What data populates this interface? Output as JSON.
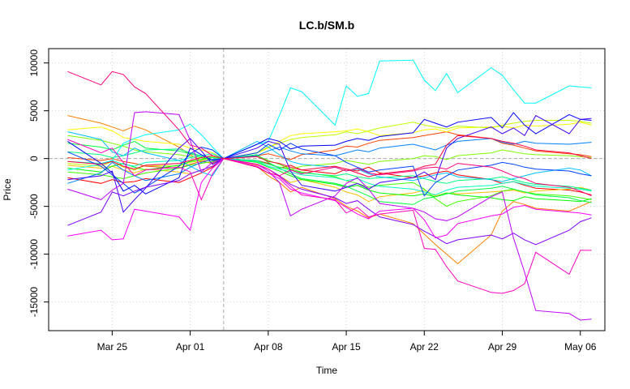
{
  "chart_data": {
    "type": "line",
    "title": "LC.b/SM.b",
    "xlabel": "Time",
    "ylabel": "Price",
    "x_tick_labels": [
      "Mar 25",
      "Apr 01",
      "Apr 08",
      "Apr 15",
      "Apr 22",
      "Apr 29",
      "May 06"
    ],
    "x_tick_positions": [
      4,
      11,
      18,
      25,
      32,
      39,
      46
    ],
    "xlim": [
      -1.7,
      48.2
    ],
    "y_ticks": [
      10000,
      5000,
      0,
      -5000,
      -10000,
      -15000
    ],
    "y_tick_labels": [
      "10000",
      "5000",
      "0",
      "-5000",
      "-10000",
      "-15000"
    ],
    "ylim": [
      -18000,
      11500
    ],
    "grid": true,
    "reference_lines": {
      "x": 14,
      "y": 0
    },
    "x": [
      0,
      3,
      4,
      5,
      6,
      7,
      10,
      11,
      12,
      13,
      14,
      17,
      18,
      19,
      20,
      21,
      24,
      25,
      26,
      27,
      28,
      31,
      32,
      33,
      34,
      35,
      38,
      39,
      40,
      41,
      42,
      45,
      46,
      47
    ],
    "series": [
      {
        "color": "#FF0000",
        "values": [
          -2000,
          -2600,
          -2200,
          -2500,
          -2400,
          -2100,
          -2500,
          -2000,
          -1500,
          -900,
          0,
          -200,
          -500,
          -1000,
          -700,
          -1200,
          -1600,
          -1100,
          -1300,
          -900,
          -1500,
          -2000,
          -1800,
          -1500,
          -1300,
          -1700,
          -2200,
          -2600,
          -2400,
          -2800,
          -3100,
          -3300,
          -3500,
          -3800
        ]
      },
      {
        "color": "#FF4000",
        "values": [
          100,
          -200,
          0,
          -300,
          -500,
          -800,
          -1000,
          -600,
          -300,
          -100,
          0,
          300,
          500,
          200,
          -100,
          400,
          900,
          1300,
          1200,
          1600,
          1900,
          2200,
          2400,
          2600,
          2800,
          2500,
          2100,
          1600,
          1400,
          1100,
          800,
          500,
          400,
          200
        ]
      },
      {
        "color": "#FF8000",
        "values": [
          4500,
          3700,
          3300,
          2900,
          3400,
          3000,
          1200,
          400,
          -300,
          -500,
          0,
          -800,
          -1800,
          -2500,
          -3500,
          -3000,
          -4200,
          -5000,
          -5500,
          -6200,
          -5800,
          -6800,
          -7900,
          -9000,
          -10000,
          -11000,
          -8000,
          -5500,
          -4500,
          -4800,
          -5200,
          -5500,
          -5000,
          -4500
        ]
      },
      {
        "color": "#FFBF00",
        "values": [
          -700,
          -1000,
          -800,
          -1200,
          -1500,
          -1100,
          -1400,
          -1600,
          -1200,
          -800,
          0,
          -700,
          -1100,
          -1800,
          -2500,
          -2200,
          -3000,
          -3500,
          -3800,
          -4500,
          -4000,
          -3600,
          -3300,
          -3900,
          -3600,
          -3700,
          -3500,
          -3400,
          -3300,
          -3600,
          -3400,
          -3200,
          -3000,
          -3300
        ]
      },
      {
        "color": "#FFFF00",
        "values": [
          3000,
          3300,
          2900,
          2200,
          2000,
          1800,
          1500,
          1100,
          900,
          600,
          0,
          600,
          1100,
          1800,
          2400,
          2600,
          2800,
          2900,
          3100,
          2800,
          2400,
          2700,
          3000,
          3100,
          2800,
          3200,
          3300,
          3400,
          3200,
          3500,
          3400,
          3600,
          3800,
          3500
        ]
      },
      {
        "color": "#BFFF00",
        "values": [
          -500,
          -800,
          -300,
          -900,
          -1200,
          -700,
          -800,
          -400,
          -200,
          200,
          0,
          600,
          1200,
          1600,
          2000,
          2200,
          2500,
          2800,
          2600,
          2900,
          3200,
          3800,
          3500,
          3300,
          3100,
          3400,
          3200,
          3500,
          3700,
          3900,
          4000,
          4000,
          3900,
          3700
        ]
      },
      {
        "color": "#80FF00",
        "values": [
          2400,
          1900,
          1600,
          1300,
          900,
          700,
          400,
          200,
          100,
          -200,
          0,
          -300,
          -600,
          -900,
          -1100,
          -800,
          -500,
          -200,
          -400,
          -600,
          -300,
          0,
          300,
          200,
          -100,
          300,
          600,
          900,
          700,
          500,
          400,
          300,
          200,
          100
        ]
      },
      {
        "color": "#40FF00",
        "values": [
          -1400,
          -1700,
          -1900,
          -2100,
          -1800,
          -1500,
          -1000,
          -700,
          -500,
          -300,
          0,
          300,
          -200,
          -600,
          -1100,
          -1400,
          -1900,
          -2300,
          -2600,
          -3000,
          -2800,
          -2500,
          -3200,
          -4200,
          -5000,
          -4500,
          -3900,
          -3400,
          -3200,
          -3500,
          -3700,
          -3900,
          -4100,
          -4300
        ]
      },
      {
        "color": "#00FF00",
        "values": [
          -1000,
          -1400,
          -800,
          -500,
          -900,
          -1200,
          -700,
          -300,
          -100,
          100,
          0,
          -400,
          -900,
          -1300,
          -1800,
          -2200,
          -2700,
          -3000,
          -2800,
          -3300,
          -3600,
          -3900,
          -3700,
          -4000,
          -3600,
          -3800,
          -4100,
          -4300,
          -4400,
          -4000,
          -4200,
          -4400,
          -4500,
          -4200
        ]
      },
      {
        "color": "#00FF40",
        "values": [
          1600,
          1200,
          900,
          1400,
          1800,
          1100,
          800,
          500,
          200,
          -200,
          0,
          400,
          -400,
          -1000,
          -1600,
          -2100,
          -2600,
          -2900,
          -3400,
          -3900,
          -4500,
          -4800,
          -4200,
          -4000,
          -3700,
          -3400,
          -3100,
          -2900,
          -3200,
          -3500,
          -3800,
          -4100,
          -4400,
          -4600
        ]
      },
      {
        "color": "#00FF80",
        "values": [
          700,
          400,
          100,
          300,
          600,
          900,
          1000,
          600,
          300,
          100,
          0,
          -200,
          -600,
          -900,
          -1200,
          -1500,
          -1800,
          -1600,
          -1900,
          -2100,
          -2000,
          -1800,
          -2100,
          -2400,
          -2600,
          -2300,
          -2100,
          -1900,
          -2200,
          -2500,
          -2700,
          -2900,
          -3100,
          -3300
        ]
      },
      {
        "color": "#00FFBF",
        "values": [
          -300,
          -500,
          -200,
          -600,
          -800,
          -400,
          -200,
          100,
          300,
          500,
          0,
          -300,
          -800,
          -1100,
          -1400,
          -1700,
          -2000,
          -2300,
          -2100,
          -2600,
          -2900,
          -3200,
          -3500,
          -3800,
          -3300,
          -3000,
          -2800,
          -2600,
          -2400,
          -2700,
          -2900,
          -3100,
          -3200,
          -3400
        ]
      },
      {
        "color": "#00FFFF",
        "values": [
          -1200,
          -600,
          -200,
          1600,
          2100,
          2500,
          3000,
          3600,
          2500,
          1200,
          0,
          1500,
          1800,
          4500,
          7400,
          7000,
          3500,
          7600,
          6500,
          6800,
          10200,
          10300,
          8200,
          7100,
          8900,
          6900,
          9500,
          8700,
          7200,
          5800,
          5800,
          7600,
          7500,
          7400
        ]
      },
      {
        "color": "#00BFFF",
        "values": [
          2800,
          2000,
          700,
          300,
          1100,
          600,
          -200,
          -800,
          -1400,
          -1800,
          0,
          1800,
          1200,
          400,
          -300,
          -600,
          -900,
          -1300,
          -1100,
          -1600,
          -1900,
          -2300,
          -2000,
          -1700,
          -1500,
          -1900,
          -2200,
          -2400,
          -2100,
          -1800,
          -1500,
          -1000,
          -1200,
          -1800
        ]
      },
      {
        "color": "#0080FF",
        "values": [
          -2600,
          -1500,
          -400,
          -1200,
          -1800,
          -2300,
          -1600,
          -900,
          -400,
          -100,
          0,
          300,
          800,
          1200,
          800,
          500,
          300,
          600,
          900,
          700,
          1100,
          1500,
          1200,
          900,
          1400,
          1800,
          2100,
          1700,
          1500,
          1800,
          1600,
          1500,
          1600,
          1700
        ]
      },
      {
        "color": "#0040FF",
        "values": [
          700,
          -800,
          -1700,
          -2600,
          -3600,
          -3000,
          -800,
          500,
          1200,
          900,
          0,
          600,
          1500,
          900,
          1600,
          1000,
          300,
          -400,
          -900,
          -1400,
          -1200,
          -800,
          -3900,
          -2500,
          -1800,
          -1200,
          -700,
          -400,
          -600,
          -900,
          -1100,
          -1300,
          -1600,
          -1800
        ]
      },
      {
        "color": "#0000FF",
        "values": [
          1800,
          -500,
          -1500,
          -3400,
          -2800,
          -3700,
          -2000,
          1100,
          400,
          -200,
          0,
          1500,
          2100,
          1800,
          1000,
          1300,
          1400,
          1800,
          2100,
          1900,
          2300,
          2700,
          4100,
          3700,
          3300,
          3800,
          4300,
          3200,
          4800,
          3500,
          2600,
          4600,
          4100,
          4000
        ]
      },
      {
        "color": "#4000FF",
        "values": [
          -2200,
          -1800,
          -1300,
          -5600,
          -4300,
          -3100,
          1100,
          2100,
          800,
          -600,
          0,
          1100,
          1800,
          1500,
          -1300,
          -2800,
          -3400,
          -3000,
          -2600,
          -3200,
          -2500,
          -2000,
          -1400,
          -2200,
          1100,
          2100,
          3300,
          2600,
          3200,
          2400,
          4500,
          2600,
          4100,
          4200
        ]
      },
      {
        "color": "#8000FF",
        "values": [
          -7000,
          -5600,
          -3500,
          -3900,
          -3400,
          -3000,
          -2300,
          -1600,
          -1200,
          -800,
          0,
          -600,
          -1100,
          -1800,
          -2700,
          -3200,
          -4100,
          -4700,
          -4400,
          -5300,
          -6100,
          -6900,
          -7600,
          -8200,
          -8900,
          -8500,
          -8000,
          -8400,
          -7800,
          -8500,
          -9000,
          -7500,
          -6600,
          -6200
        ]
      },
      {
        "color": "#BF00FF",
        "values": [
          -3200,
          -4300,
          -3300,
          -2600,
          4800,
          4900,
          4600,
          1900,
          -1400,
          -400,
          0,
          -600,
          -1300,
          -2500,
          -6000,
          -5300,
          -3900,
          -2600,
          -2000,
          -3200,
          -4700,
          -5200,
          -5600,
          -6300,
          -6500,
          -6100,
          -4000,
          -3500,
          -8300,
          -11900,
          -15900,
          -16200,
          -16900,
          -16800
        ]
      },
      {
        "color": "#FF00FF",
        "values": [
          -8100,
          -7500,
          -8500,
          -8400,
          -5300,
          -5500,
          -6100,
          -7500,
          -2500,
          -1000,
          0,
          -800,
          -1500,
          -2100,
          -3200,
          -3600,
          -4400,
          -5100,
          -5800,
          -6300,
          -5500,
          -5200,
          -6400,
          -8300,
          -8000,
          -6800,
          -6000,
          -5800,
          -5100,
          -4900,
          -5300,
          -5600,
          -5700,
          -5900
        ]
      },
      {
        "color": "#FF00BF",
        "values": [
          2000,
          600,
          1100,
          -400,
          -1800,
          -1200,
          -900,
          -1400,
          -4300,
          -1600,
          0,
          -600,
          -1100,
          -1900,
          -2900,
          -3800,
          -4300,
          -5700,
          -5100,
          -6100,
          -5800,
          -5400,
          -9400,
          -9500,
          -11300,
          -12800,
          -14000,
          -14100,
          -13800,
          -13100,
          -9800,
          -12100,
          -9600,
          -9600
        ]
      },
      {
        "color": "#FF0080",
        "values": [
          9100,
          7700,
          9100,
          8800,
          7500,
          6800,
          3000,
          1400,
          1100,
          300,
          0,
          -900,
          -1500,
          -1800,
          -1200,
          -1600,
          -900,
          -1300,
          -1000,
          -1500,
          -1700,
          -1300,
          -1000,
          -900,
          -1100,
          -500,
          -900,
          -1300,
          -1800,
          -2100,
          -2600,
          -3000,
          -3400,
          -3900
        ]
      },
      {
        "color": "#FF0040",
        "values": [
          -300,
          -600,
          -300,
          -800,
          -1100,
          -700,
          -500,
          -200,
          100,
          300,
          0,
          200,
          -300,
          -500,
          -900,
          -1200,
          -800,
          -1100,
          -1500,
          -1900,
          -1600,
          -1200,
          -800,
          -600,
          1400,
          2400,
          2100,
          1800,
          1600,
          1300,
          900,
          600,
          300,
          0
        ]
      }
    ]
  }
}
